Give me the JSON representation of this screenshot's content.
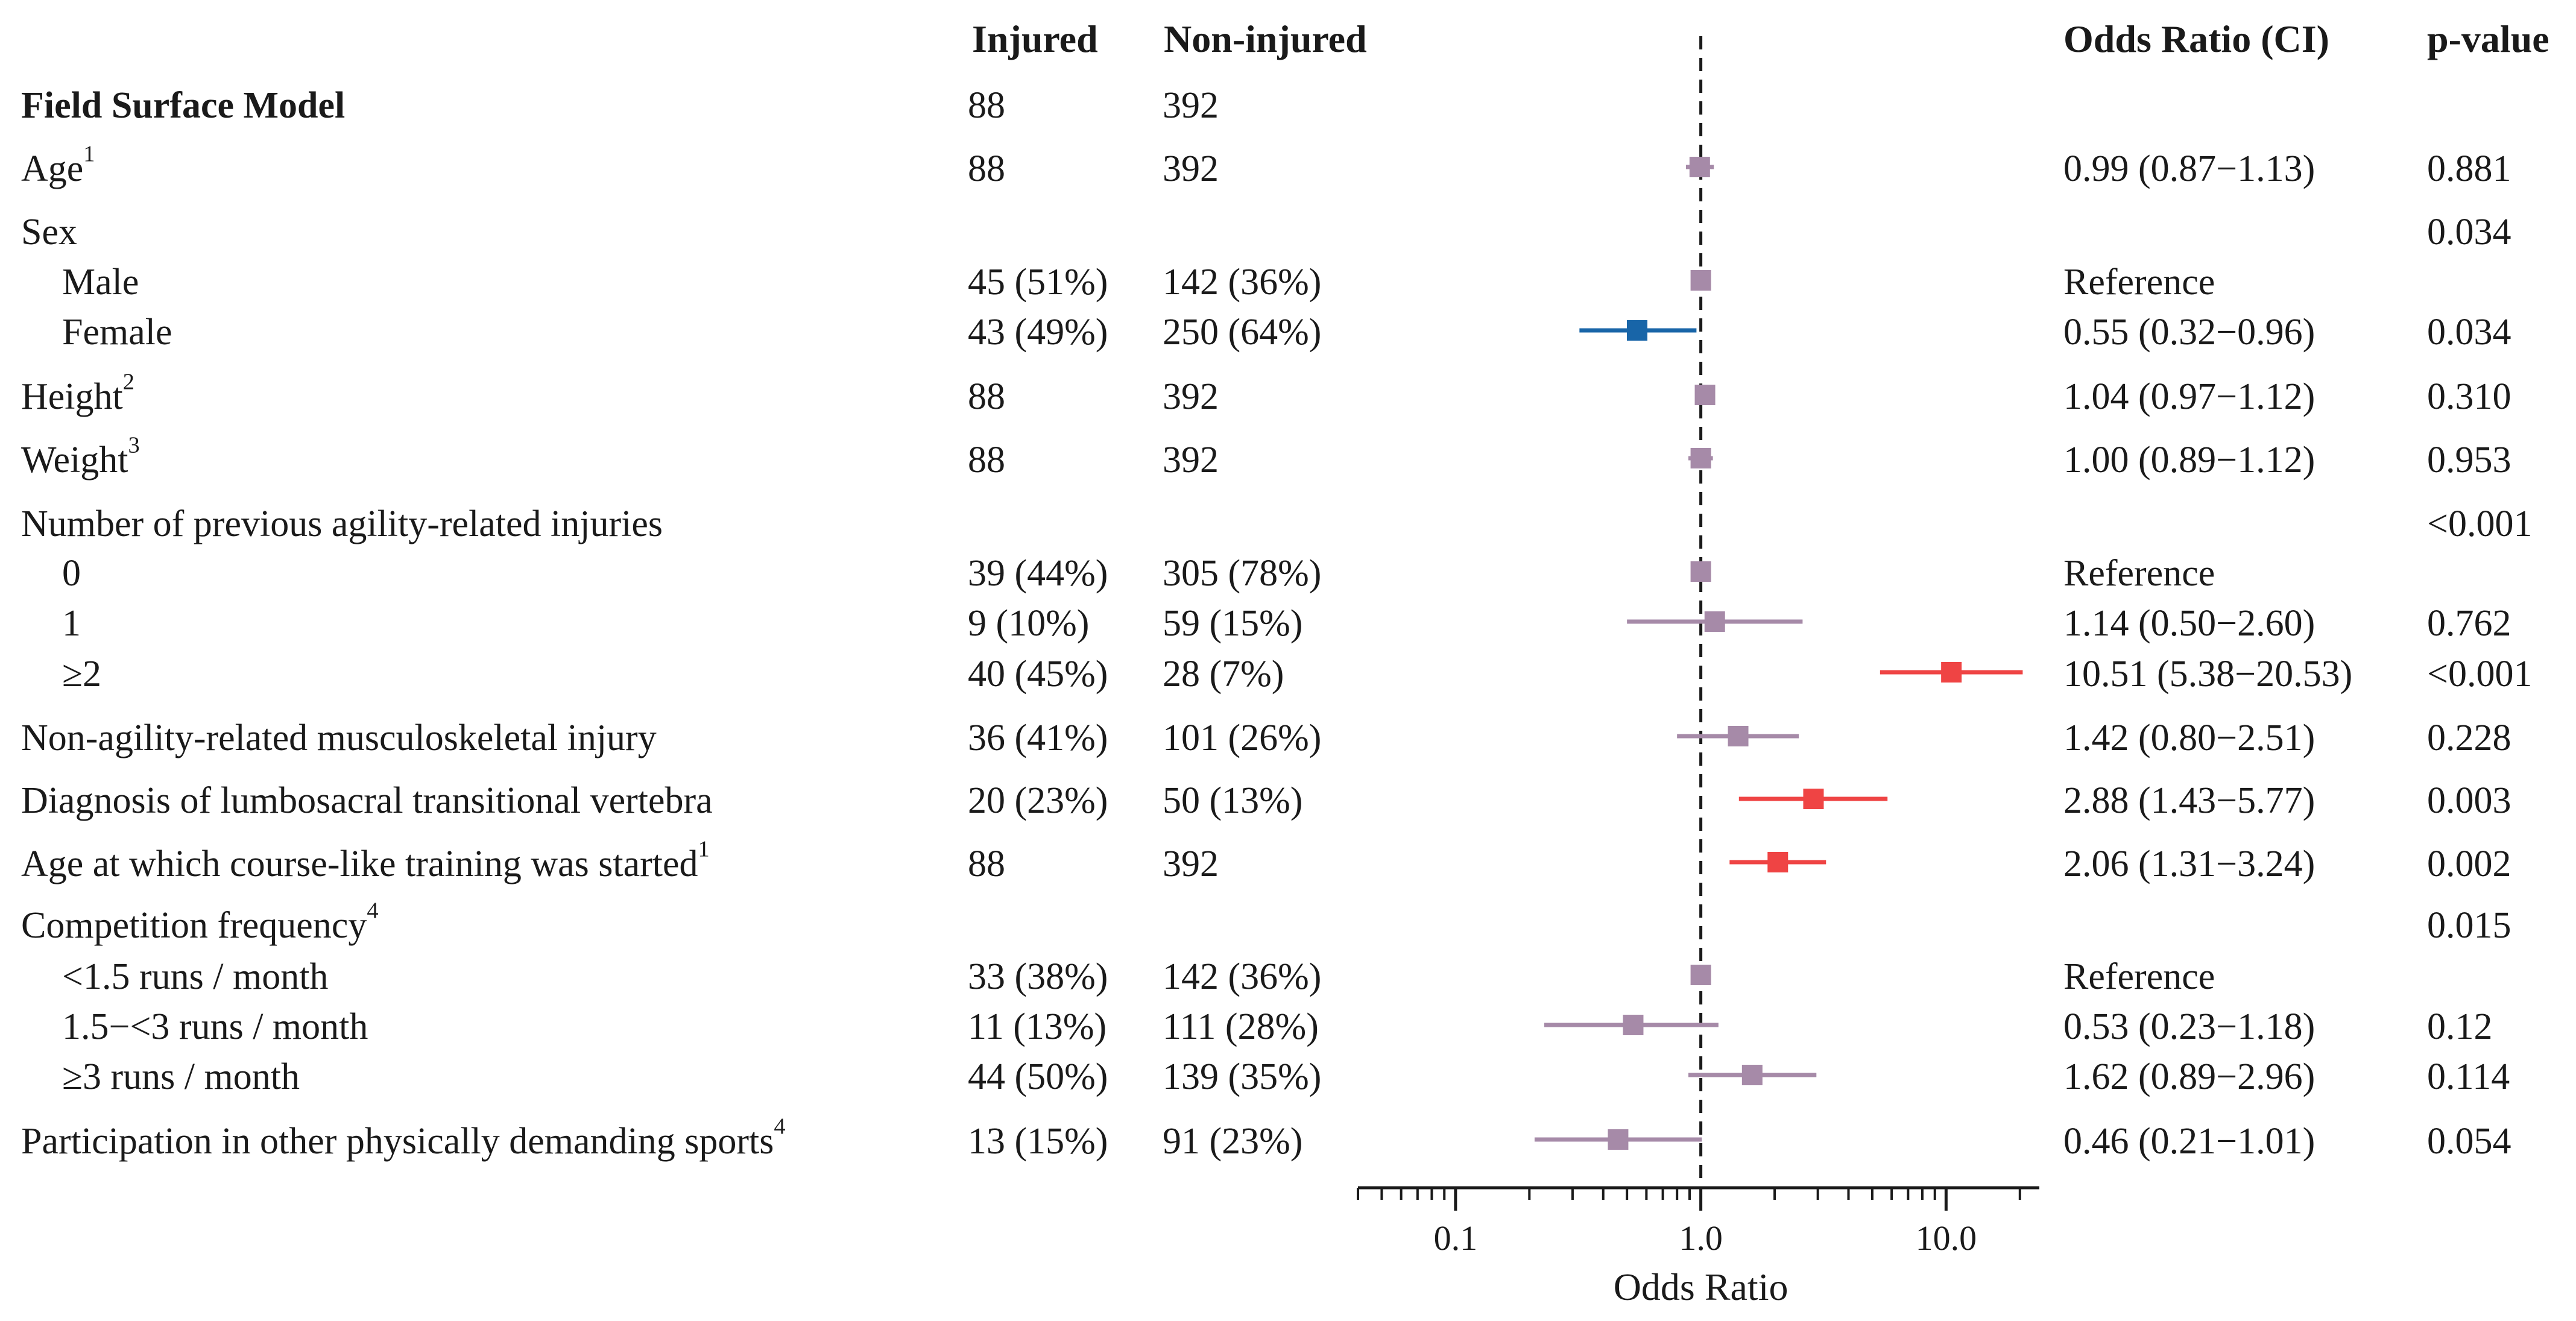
{
  "headers": {
    "variable": "",
    "injured": "Injured",
    "non_injured": "Non-injured",
    "odds_ratio_ci": "Odds Ratio (CI)",
    "p_value": "p-value"
  },
  "rows": [
    {
      "label": "Field Surface Model",
      "bold": true,
      "indent": false,
      "injured": "88",
      "non_injured": "392",
      "or_ci": "",
      "p": ""
    },
    {
      "label": "Age",
      "sup": "1",
      "indent": false,
      "injured": "88",
      "non_injured": "392",
      "or_ci": "0.99 (0.87−1.13)",
      "p": "0.881"
    },
    {
      "label": "Sex",
      "indent": false,
      "injured": "",
      "non_injured": "",
      "or_ci": "",
      "p": "0.034"
    },
    {
      "label": "Male",
      "indent": true,
      "injured": "45 (51%)",
      "non_injured": "142 (36%)",
      "or_ci": "Reference",
      "p": ""
    },
    {
      "label": "Female",
      "indent": true,
      "injured": "43 (49%)",
      "non_injured": "250 (64%)",
      "or_ci": "0.55 (0.32−0.96)",
      "p": "0.034"
    },
    {
      "label": "Height",
      "sup": "2",
      "indent": false,
      "injured": "88",
      "non_injured": "392",
      "or_ci": "1.04 (0.97−1.12)",
      "p": "0.310"
    },
    {
      "label": "Weight",
      "sup": "3",
      "indent": false,
      "injured": "88",
      "non_injured": "392",
      "or_ci": "1.00 (0.89−1.12)",
      "p": "0.953"
    },
    {
      "label": "Number of previous agility-related injuries",
      "indent": false,
      "injured": "",
      "non_injured": "",
      "or_ci": "",
      "p": "<0.001"
    },
    {
      "label": "0",
      "indent": true,
      "injured": "39 (44%)",
      "non_injured": "305 (78%)",
      "or_ci": "Reference",
      "p": ""
    },
    {
      "label": "1",
      "indent": true,
      "injured": "9 (10%)",
      "non_injured": "59 (15%)",
      "or_ci": "1.14 (0.50−2.60)",
      "p": "0.762"
    },
    {
      "label": "≥2",
      "indent": true,
      "injured": "40 (45%)",
      "non_injured": "28 (7%)",
      "or_ci": "10.51 (5.38−20.53)",
      "p": "<0.001"
    },
    {
      "label": "Non-agility-related musculoskeletal injury",
      "indent": false,
      "injured": "36 (41%)",
      "non_injured": "101 (26%)",
      "or_ci": "1.42 (0.80−2.51)",
      "p": "0.228"
    },
    {
      "label": "Diagnosis of lumbosacral transitional vertebra",
      "indent": false,
      "injured": "20 (23%)",
      "non_injured": "50 (13%)",
      "or_ci": "2.88 (1.43−5.77)",
      "p": "0.003"
    },
    {
      "label": "Age at which course-like training was started",
      "sup": "1",
      "indent": false,
      "injured": "88",
      "non_injured": "392",
      "or_ci": "2.06 (1.31−3.24)",
      "p": "0.002"
    },
    {
      "label": "Competition frequency",
      "sup": "4",
      "indent": false,
      "injured": "",
      "non_injured": "",
      "or_ci": "",
      "p": "0.015"
    },
    {
      "label": "<1.5 runs / month",
      "indent": true,
      "injured": "33 (38%)",
      "non_injured": "142 (36%)",
      "or_ci": "Reference",
      "p": ""
    },
    {
      "label": "1.5−<3 runs / month",
      "indent": true,
      "injured": "11 (13%)",
      "non_injured": "111 (28%)",
      "or_ci": "0.53 (0.23−1.18)",
      "p": "0.12"
    },
    {
      "label": "≥3 runs / month",
      "indent": true,
      "injured": "44 (50%)",
      "non_injured": "139 (35%)",
      "or_ci": "1.62 (0.89−2.96)",
      "p": "0.114"
    },
    {
      "label": "Participation in other physically demanding sports",
      "sup": "4",
      "indent": false,
      "injured": "13 (15%)",
      "non_injured": "91 (23%)",
      "or_ci": "0.46 (0.21−1.01)",
      "p": "0.054"
    }
  ],
  "chart_data": {
    "type": "forest",
    "xlabel": "Odds Ratio",
    "xscale": "log",
    "xlim": [
      0.04,
      24
    ],
    "xticks": [
      0.1,
      1.0,
      10.0
    ],
    "xtick_labels": [
      "0.1",
      "1.0",
      "10.0"
    ],
    "reference_line": 1.0,
    "colors": {
      "neutral": "#a68aa8",
      "protective": "#1865a8",
      "risk": "#ef4444",
      "axis": "#1a1a1a"
    },
    "points": [
      {
        "row": 1,
        "or": 0.99,
        "lo": 0.87,
        "hi": 1.13,
        "kind": "neutral"
      },
      {
        "row": 3,
        "or": 1.0,
        "lo": 1.0,
        "hi": 1.0,
        "kind": "neutral"
      },
      {
        "row": 4,
        "or": 0.55,
        "lo": 0.32,
        "hi": 0.96,
        "kind": "protective"
      },
      {
        "row": 5,
        "or": 1.04,
        "lo": 0.97,
        "hi": 1.12,
        "kind": "neutral"
      },
      {
        "row": 6,
        "or": 1.0,
        "lo": 0.89,
        "hi": 1.12,
        "kind": "neutral"
      },
      {
        "row": 8,
        "or": 1.0,
        "lo": 1.0,
        "hi": 1.0,
        "kind": "neutral"
      },
      {
        "row": 9,
        "or": 1.14,
        "lo": 0.5,
        "hi": 2.6,
        "kind": "neutral"
      },
      {
        "row": 10,
        "or": 10.51,
        "lo": 5.38,
        "hi": 20.53,
        "kind": "risk"
      },
      {
        "row": 11,
        "or": 1.42,
        "lo": 0.8,
        "hi": 2.51,
        "kind": "neutral"
      },
      {
        "row": 12,
        "or": 2.88,
        "lo": 1.43,
        "hi": 5.77,
        "kind": "risk"
      },
      {
        "row": 13,
        "or": 2.06,
        "lo": 1.31,
        "hi": 3.24,
        "kind": "risk"
      },
      {
        "row": 15,
        "or": 1.0,
        "lo": 1.0,
        "hi": 1.0,
        "kind": "neutral"
      },
      {
        "row": 16,
        "or": 0.53,
        "lo": 0.23,
        "hi": 1.18,
        "kind": "neutral"
      },
      {
        "row": 17,
        "or": 1.62,
        "lo": 0.89,
        "hi": 2.96,
        "kind": "neutral"
      },
      {
        "row": 18,
        "or": 0.46,
        "lo": 0.21,
        "hi": 1.01,
        "kind": "neutral"
      }
    ]
  }
}
